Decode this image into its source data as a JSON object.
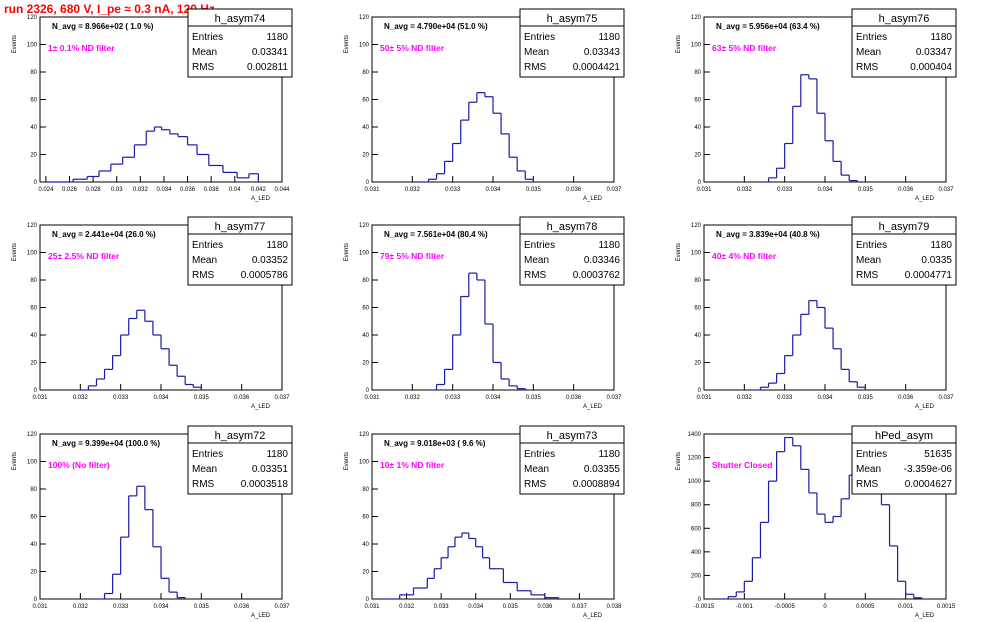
{
  "header": {
    "title": "run 2326,   680 V, I_pe ≈ 0.3 nA, 120 Hz"
  },
  "chart_data": [
    {
      "type": "histogram",
      "name": "h_asym74",
      "navg": "N_avg = 8.966e+02 ( 1.0 %)",
      "filter": "1± 0.1% ND filter",
      "stats": [
        [
          "Entries",
          "1180"
        ],
        [
          "Mean",
          "0.03341"
        ],
        [
          "RMS",
          "0.002811"
        ]
      ],
      "ylabel": "Events",
      "xlabel": "A_LED",
      "xlim": [
        0.0235,
        0.044
      ],
      "ylim": [
        0,
        120
      ],
      "xticks": [
        0.024,
        0.026,
        0.028,
        0.03,
        0.032,
        0.034,
        0.036,
        0.038,
        0.04,
        0.042,
        0.044
      ],
      "xtick_labels": [
        "0.024",
        "0.026",
        "0.028",
        "0.03",
        "0.032",
        "0.034",
        "0.036",
        "0.038",
        "0.04",
        "0.042",
        "0.044"
      ],
      "yticks": [
        0,
        20,
        40,
        60,
        80,
        100,
        120
      ],
      "x": [
        0.024,
        0.0263,
        0.0275,
        0.0285,
        0.0295,
        0.0305,
        0.0315,
        0.0325,
        0.0332,
        0.0338,
        0.0345,
        0.0352,
        0.036,
        0.0368,
        0.0378,
        0.039,
        0.0402,
        0.0412,
        0.042
      ],
      "values": [
        0,
        2,
        4,
        8,
        13,
        18,
        27,
        37,
        40,
        38,
        35,
        33,
        27,
        20,
        12,
        7,
        3,
        6,
        0
      ]
    },
    {
      "type": "histogram",
      "name": "h_asym75",
      "navg": "N_avg = 4.790e+04 (51.0 %)",
      "filter": "50± 5% ND filter",
      "stats": [
        [
          "Entries",
          "1180"
        ],
        [
          "Mean",
          "0.03343"
        ],
        [
          "RMS",
          "0.0004421"
        ]
      ],
      "ylabel": "Events",
      "xlabel": "A_LED",
      "xlim": [
        0.031,
        0.037
      ],
      "ylim": [
        0,
        120
      ],
      "xticks": [
        0.031,
        0.032,
        0.033,
        0.034,
        0.035,
        0.036,
        0.037
      ],
      "xtick_labels": [
        "0.031",
        "0.032",
        "0.033",
        "0.034",
        "0.035",
        "0.036",
        "0.037"
      ],
      "yticks": [
        0,
        20,
        40,
        60,
        80,
        100,
        120
      ],
      "x": [
        0.0322,
        0.0324,
        0.0326,
        0.0328,
        0.033,
        0.0332,
        0.0334,
        0.0336,
        0.0338,
        0.034,
        0.0342,
        0.0344,
        0.0346,
        0.0348,
        0.035
      ],
      "values": [
        0,
        2,
        6,
        15,
        28,
        45,
        58,
        65,
        62,
        50,
        35,
        18,
        8,
        2,
        0
      ]
    },
    {
      "type": "histogram",
      "name": "h_asym76",
      "navg": "N_avg = 5.956e+04 (63.4 %)",
      "filter": "63± 5% ND filter",
      "stats": [
        [
          "Entries",
          "1180"
        ],
        [
          "Mean",
          "0.03347"
        ],
        [
          "RMS",
          "0.000404"
        ]
      ],
      "ylabel": "Events",
      "xlabel": "A_LED",
      "xlim": [
        0.031,
        0.037
      ],
      "ylim": [
        0,
        120
      ],
      "xticks": [
        0.031,
        0.032,
        0.033,
        0.034,
        0.035,
        0.036,
        0.037
      ],
      "xtick_labels": [
        "0.031",
        "0.032",
        "0.033",
        "0.034",
        "0.035",
        "0.036",
        "0.037"
      ],
      "yticks": [
        0,
        20,
        40,
        60,
        80,
        100,
        120
      ],
      "x": [
        0.0324,
        0.0326,
        0.0328,
        0.033,
        0.0332,
        0.0334,
        0.0336,
        0.0338,
        0.034,
        0.0342,
        0.0344,
        0.0346,
        0.0348
      ],
      "values": [
        0,
        3,
        10,
        28,
        55,
        78,
        75,
        50,
        30,
        15,
        5,
        1,
        0
      ]
    },
    {
      "type": "histogram",
      "name": "h_asym77",
      "navg": "N_avg = 2.441e+04 (26.0 %)",
      "filter": "25± 2.5% ND filter",
      "stats": [
        [
          "Entries",
          "1180"
        ],
        [
          "Mean",
          "0.03352"
        ],
        [
          "RMS",
          "0.0005786"
        ]
      ],
      "ylabel": "Events",
      "xlabel": "A_LED",
      "xlim": [
        0.031,
        0.037
      ],
      "ylim": [
        0,
        120
      ],
      "xticks": [
        0.031,
        0.032,
        0.033,
        0.034,
        0.035,
        0.036,
        0.037
      ],
      "xtick_labels": [
        "0.031",
        "0.032",
        "0.033",
        "0.034",
        "0.035",
        "0.036",
        "0.037"
      ],
      "yticks": [
        0,
        20,
        40,
        60,
        80,
        100,
        120
      ],
      "x": [
        0.032,
        0.0322,
        0.0324,
        0.0326,
        0.0328,
        0.033,
        0.0332,
        0.0334,
        0.0336,
        0.0338,
        0.034,
        0.0342,
        0.0344,
        0.0346,
        0.0348,
        0.035
      ],
      "values": [
        0,
        3,
        8,
        15,
        25,
        40,
        52,
        58,
        50,
        40,
        30,
        18,
        10,
        4,
        2,
        0
      ]
    },
    {
      "type": "histogram",
      "name": "h_asym78",
      "navg": "N_avg = 7.561e+04 (80.4 %)",
      "filter": "79± 5% ND filter",
      "stats": [
        [
          "Entries",
          "1180"
        ],
        [
          "Mean",
          "0.03346"
        ],
        [
          "RMS",
          "0.0003762"
        ]
      ],
      "ylabel": "Events",
      "xlabel": "A_LED",
      "xlim": [
        0.031,
        0.037
      ],
      "ylim": [
        0,
        120
      ],
      "xticks": [
        0.031,
        0.032,
        0.033,
        0.034,
        0.035,
        0.036,
        0.037
      ],
      "xtick_labels": [
        "0.031",
        "0.032",
        "0.033",
        "0.034",
        "0.035",
        "0.036",
        "0.037"
      ],
      "yticks": [
        0,
        20,
        40,
        60,
        80,
        100,
        120
      ],
      "x": [
        0.0324,
        0.0326,
        0.0328,
        0.033,
        0.0332,
        0.0334,
        0.0336,
        0.0338,
        0.034,
        0.0342,
        0.0344,
        0.0346,
        0.0348
      ],
      "values": [
        0,
        4,
        15,
        40,
        68,
        85,
        80,
        48,
        20,
        8,
        3,
        1,
        0
      ]
    },
    {
      "type": "histogram",
      "name": "h_asym79",
      "navg": "N_avg = 3.839e+04 (40.8 %)",
      "filter": "40± 4% ND filter",
      "stats": [
        [
          "Entries",
          "1180"
        ],
        [
          "Mean",
          "0.0335"
        ],
        [
          "RMS",
          "0.0004771"
        ]
      ],
      "ylabel": "Events",
      "xlabel": "A_LED",
      "xlim": [
        0.031,
        0.037
      ],
      "ylim": [
        0,
        120
      ],
      "xticks": [
        0.031,
        0.032,
        0.033,
        0.034,
        0.035,
        0.036,
        0.037
      ],
      "xtick_labels": [
        "0.031",
        "0.032",
        "0.033",
        "0.034",
        "0.035",
        "0.036",
        "0.037"
      ],
      "yticks": [
        0,
        20,
        40,
        60,
        80,
        100,
        120
      ],
      "x": [
        0.0322,
        0.0324,
        0.0326,
        0.0328,
        0.033,
        0.0332,
        0.0334,
        0.0336,
        0.0338,
        0.034,
        0.0342,
        0.0344,
        0.0346,
        0.0348,
        0.035
      ],
      "values": [
        0,
        2,
        5,
        12,
        25,
        40,
        55,
        65,
        60,
        45,
        30,
        15,
        6,
        2,
        0
      ]
    },
    {
      "type": "histogram",
      "name": "h_asym72",
      "navg": "N_avg = 9.399e+04 (100.0 %)",
      "filter": "100% (No filter)",
      "stats": [
        [
          "Entries",
          "1180"
        ],
        [
          "Mean",
          "0.03351"
        ],
        [
          "RMS",
          "0.0003518"
        ]
      ],
      "ylabel": "Events",
      "xlabel": "A_LED",
      "xlim": [
        0.031,
        0.037
      ],
      "ylim": [
        0,
        120
      ],
      "xticks": [
        0.031,
        0.032,
        0.033,
        0.034,
        0.035,
        0.036,
        0.037
      ],
      "xtick_labels": [
        "0.031",
        "0.032",
        "0.033",
        "0.034",
        "0.035",
        "0.036",
        "0.037"
      ],
      "yticks": [
        0,
        20,
        40,
        60,
        80,
        100,
        120
      ],
      "x": [
        0.0324,
        0.0326,
        0.0328,
        0.033,
        0.0332,
        0.0334,
        0.0336,
        0.0338,
        0.034,
        0.0342,
        0.0344,
        0.0346
      ],
      "values": [
        0,
        4,
        18,
        45,
        75,
        82,
        65,
        38,
        15,
        5,
        1,
        0
      ]
    },
    {
      "type": "histogram",
      "name": "h_asym73",
      "navg": "N_avg = 9.018e+03 ( 9.6 %)",
      "filter": "10± 1% ND filter",
      "stats": [
        [
          "Entries",
          "1180"
        ],
        [
          "Mean",
          "0.03355"
        ],
        [
          "RMS",
          "0.0008894"
        ]
      ],
      "ylabel": "Events",
      "xlabel": "A_LED",
      "xlim": [
        0.031,
        0.038
      ],
      "ylim": [
        0,
        120
      ],
      "xticks": [
        0.031,
        0.032,
        0.033,
        0.034,
        0.035,
        0.036,
        0.037,
        0.038
      ],
      "xtick_labels": [
        "0.031",
        "0.032",
        "0.033",
        "0.034",
        "0.035",
        "0.036",
        "0.037",
        "0.038"
      ],
      "yticks": [
        0,
        20,
        40,
        60,
        80,
        100,
        120
      ],
      "x": [
        0.0314,
        0.0318,
        0.0322,
        0.0326,
        0.0328,
        0.033,
        0.0332,
        0.0334,
        0.0336,
        0.0338,
        0.034,
        0.0342,
        0.0344,
        0.0348,
        0.0352,
        0.0356,
        0.036,
        0.0364
      ],
      "values": [
        0,
        3,
        8,
        15,
        22,
        30,
        38,
        45,
        48,
        44,
        38,
        30,
        22,
        12,
        6,
        3,
        1,
        0
      ]
    },
    {
      "type": "histogram",
      "name": "hPed_asym",
      "navg": "",
      "filter": "Shutter Closed",
      "stats": [
        [
          "Entries",
          "51635"
        ],
        [
          "Mean",
          "-3.359e-06"
        ],
        [
          "RMS",
          "0.0004627"
        ]
      ],
      "ylabel": "Events",
      "xlabel": "A_LED",
      "xlim": [
        -0.0015,
        0.0015
      ],
      "ylim": [
        0,
        1400
      ],
      "xticks": [
        -0.0015,
        -0.001,
        -0.0005,
        0,
        0.0005,
        0.001,
        0.0015
      ],
      "xtick_labels": [
        "-0.0015",
        "-0.001",
        "-0.0005",
        "0",
        "0.0005",
        "0.001",
        "0.0015"
      ],
      "yticks": [
        0,
        200,
        400,
        600,
        800,
        1000,
        1200,
        1400
      ],
      "x": [
        -0.0013,
        -0.0012,
        -0.0011,
        -0.001,
        -0.0009,
        -0.0008,
        -0.0007,
        -0.0006,
        -0.0005,
        -0.0004,
        -0.0003,
        -0.0002,
        -0.0001,
        0,
        0.0001,
        0.0002,
        0.0003,
        0.0004,
        0.0005,
        0.0006,
        0.0007,
        0.0008,
        0.0009,
        0.001,
        0.0011,
        0.0012
      ],
      "values": [
        0,
        20,
        60,
        150,
        350,
        650,
        1000,
        1250,
        1370,
        1300,
        1100,
        900,
        720,
        650,
        700,
        850,
        1050,
        1200,
        1250,
        1100,
        800,
        450,
        150,
        40,
        10,
        0
      ]
    }
  ]
}
